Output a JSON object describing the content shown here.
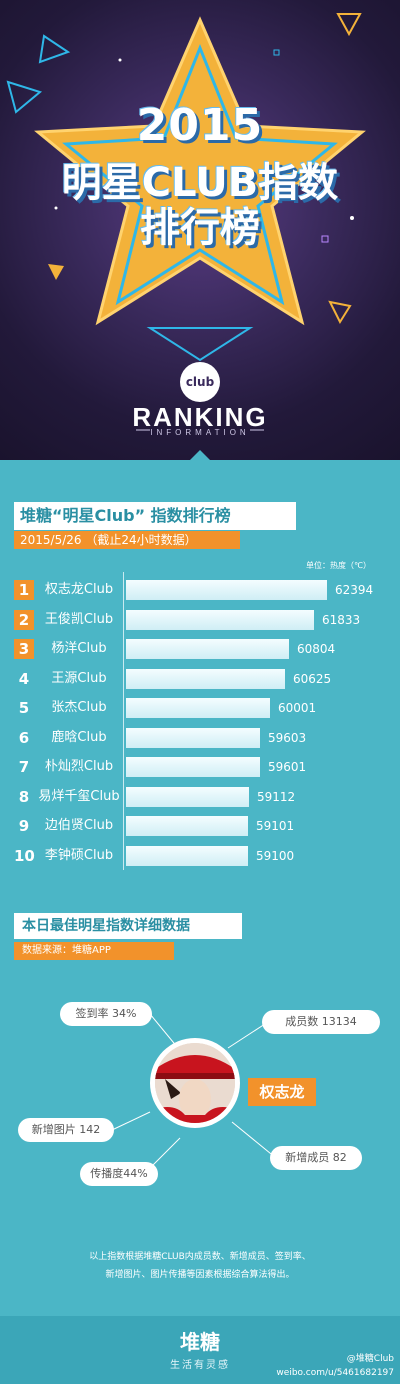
{
  "hero": {
    "year": "2015",
    "line2": "明星CLUB指数",
    "line3": "排行榜",
    "logo_text": "club",
    "ranking": "RANKING",
    "ranking_sub": "INFORMATION"
  },
  "ranking_section": {
    "title": "堆糖“明星Club” 指数排行榜",
    "date": "2015/5/26 （截止24小时数据）",
    "unit": "单位：热度（℃）"
  },
  "chart_data": {
    "type": "bar",
    "orientation": "horizontal",
    "title": "堆糖“明星Club” 指数排行榜",
    "unit": "单位：热度（℃）",
    "categories": [
      "权志龙Club",
      "王俊凯Club",
      "杨洋Club",
      "王源Club",
      "张杰Club",
      "鹿晗Club",
      "朴灿烈Club",
      "易烊千玺Club",
      "边伯贤Club",
      "李钟硕Club"
    ],
    "ranks": [
      "1",
      "2",
      "3",
      "4",
      "5",
      "6",
      "7",
      "8",
      "9",
      "10"
    ],
    "values": [
      62394,
      61833,
      60804,
      60625,
      60001,
      59603,
      59601,
      59112,
      59101,
      59100
    ],
    "value_labels": [
      "62394",
      "61833",
      "60804",
      "60625",
      "60001",
      "59603",
      "59601",
      "59112",
      "59101",
      "59100"
    ]
  },
  "detail_section": {
    "title": "本日最佳明星指数详细数据",
    "source": "数据来源：堆糖APP",
    "star_name": "权志龙",
    "metrics": {
      "sign_rate": "签到率 34%",
      "members": "成员数 13134",
      "new_images": "新增图片 142",
      "new_members": "新增成员 82",
      "spread": "传播度44%"
    },
    "note_line1": "以上指数根据堆糖CLUB内成员数、新增成员、签到率、",
    "note_line2": "新增图片、图片传播等因素根据综合算法得出。"
  },
  "footer": {
    "logo": "堆糖",
    "slogan": "生活有灵感",
    "weibo_handle": "@堆糖Club",
    "weibo_url": "weibo.com/u/5461682197"
  },
  "colors": {
    "background": "#4bb6c6",
    "accent": "#f2922b",
    "hero": "#2a1f45"
  }
}
